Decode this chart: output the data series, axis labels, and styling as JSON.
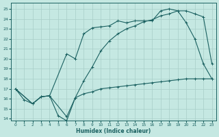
{
  "bg_color": "#c5e8e2",
  "grid_color": "#a8cec8",
  "line_color": "#1a6060",
  "xlabel": "Humidex (Indice chaleur)",
  "xlim": [
    -0.5,
    23.5
  ],
  "ylim": [
    13.8,
    25.6
  ],
  "yticks": [
    14,
    15,
    16,
    17,
    18,
    19,
    20,
    21,
    22,
    23,
    24,
    25
  ],
  "xticks": [
    0,
    1,
    2,
    3,
    4,
    5,
    6,
    7,
    8,
    9,
    10,
    11,
    12,
    13,
    14,
    15,
    16,
    17,
    18,
    19,
    20,
    21,
    22,
    23
  ],
  "series1": {
    "x": [
      0,
      1,
      2,
      3,
      4,
      5,
      6,
      7,
      8,
      9,
      10,
      11,
      12,
      13,
      14,
      15,
      16,
      17,
      18,
      19,
      20,
      21,
      22,
      23
    ],
    "y": [
      17.0,
      15.9,
      15.5,
      16.2,
      16.3,
      14.3,
      13.8,
      16.1,
      16.5,
      16.7,
      17.0,
      17.1,
      17.2,
      17.3,
      17.4,
      17.5,
      17.6,
      17.7,
      17.8,
      17.9,
      18.0,
      18.0,
      18.0,
      18.0
    ]
  },
  "series2": {
    "x": [
      0,
      2,
      3,
      4,
      6,
      7,
      8,
      9,
      10,
      11,
      12,
      13,
      14,
      15,
      16,
      17,
      18,
      19,
      20,
      21,
      22,
      23
    ],
    "y": [
      17.0,
      15.5,
      16.2,
      16.3,
      20.5,
      20.0,
      22.5,
      23.1,
      23.2,
      23.3,
      23.8,
      23.6,
      23.8,
      23.8,
      23.8,
      24.8,
      25.0,
      24.8,
      23.6,
      22.0,
      19.5,
      18.0
    ]
  },
  "series3": {
    "x": [
      0,
      2,
      3,
      4,
      6,
      7,
      8,
      9,
      10,
      11,
      12,
      13,
      14,
      15,
      16,
      17,
      18,
      19,
      20,
      21,
      22,
      23
    ],
    "y": [
      17.0,
      15.5,
      16.2,
      16.3,
      14.2,
      16.1,
      17.8,
      19.2,
      20.8,
      21.8,
      22.5,
      23.0,
      23.3,
      23.7,
      23.9,
      24.3,
      24.5,
      24.8,
      24.8,
      24.5,
      24.2,
      19.5
    ]
  }
}
